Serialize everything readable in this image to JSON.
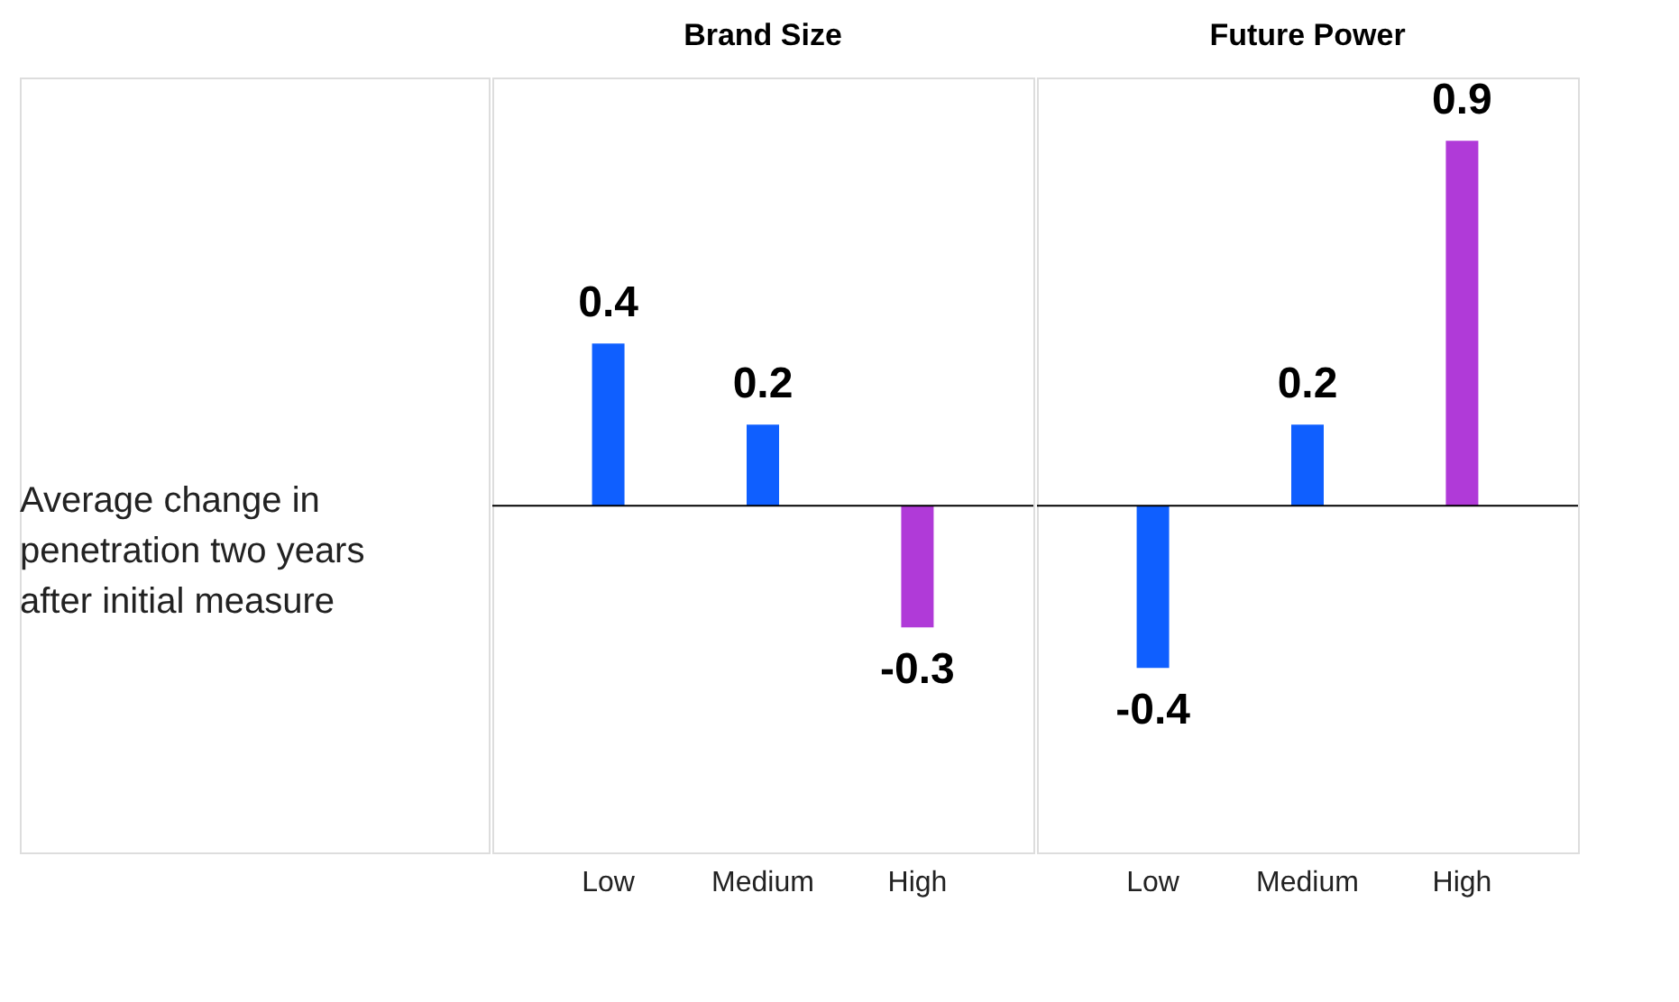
{
  "chart_data": [
    {
      "type": "bar",
      "title": "Brand Size",
      "ylabel": "Average change in penetration two years after initial measure",
      "categories": [
        "Low",
        "Medium",
        "High"
      ],
      "values": [
        0.4,
        0.2,
        -0.3
      ],
      "colors": [
        "#0f5fff",
        "#0f5fff",
        "#b03ad8"
      ],
      "data_labels": true
    },
    {
      "type": "bar",
      "title": "Future Power",
      "categories": [
        "Low",
        "Medium",
        "High"
      ],
      "values": [
        -0.4,
        0.2,
        0.9
      ],
      "colors": [
        "#0f5fff",
        "#0f5fff",
        "#b03ad8"
      ],
      "data_labels": true
    }
  ]
}
